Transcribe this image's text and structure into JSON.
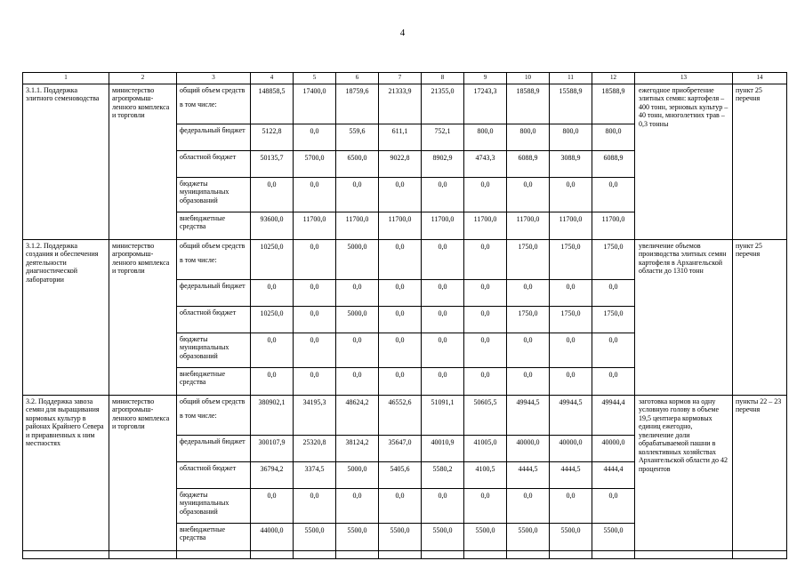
{
  "page": {
    "number": "4"
  },
  "table": {
    "column_numbers": [
      "1",
      "2",
      "3",
      "4",
      "5",
      "6",
      "7",
      "8",
      "9",
      "10",
      "11",
      "12",
      "13",
      "14"
    ],
    "groups": [
      {
        "title": "3.1.1. Поддержка элитного семеноводства",
        "executor": "министерство агропромыш­ленного комплекса и торговли",
        "rows": [
          {
            "label": "общий объем средств",
            "note": "в том числе:",
            "values": [
              "148858,5",
              "17400,0",
              "18759,6",
              "21333,9",
              "21355,0",
              "17243,3",
              "18588,9",
              "15588,9",
              "18588,9"
            ]
          },
          {
            "label": "федеральный бюджет",
            "values": [
              "5122,8",
              "0,0",
              "559,6",
              "611,1",
              "752,1",
              "800,0",
              "800,0",
              "800,0",
              "800,0"
            ]
          },
          {
            "label": "областной бюджет",
            "values": [
              "50135,7",
              "5700,0",
              "6500,0",
              "9022,8",
              "8902,9",
              "4743,3",
              "6088,9",
              "3088,9",
              "6088,9"
            ]
          },
          {
            "label": "бюджеты муниципальных образований",
            "values": [
              "0,0",
              "0,0",
              "0,0",
              "0,0",
              "0,0",
              "0,0",
              "0,0",
              "0,0",
              "0,0"
            ]
          },
          {
            "label": "внебюджетные средства",
            "values": [
              "93600,0",
              "11700,0",
              "11700,0",
              "11700,0",
              "11700,0",
              "11700,0",
              "11700,0",
              "11700,0",
              "11700,0"
            ]
          }
        ],
        "expected_result": "ежегодное приобретение элитных семян: картофеля – 400 тонн, зерновых культур – 40 тонн, многолетних трав – 0,3 тонны",
        "reference": "пункт 25 перечня"
      },
      {
        "title": "3.1.2. Поддержка создания и обеспечения деятельности диагностической лаборатории",
        "executor": "министерство агропромыш­ленного комплекса и торговли",
        "rows": [
          {
            "label": "общий объем средств",
            "note": "в том числе:",
            "values": [
              "10250,0",
              "0,0",
              "5000,0",
              "0,0",
              "0,0",
              "0,0",
              "1750,0",
              "1750,0",
              "1750,0"
            ]
          },
          {
            "label": "федеральный бюджет",
            "values": [
              "0,0",
              "0,0",
              "0,0",
              "0,0",
              "0,0",
              "0,0",
              "0,0",
              "0,0",
              "0,0"
            ]
          },
          {
            "label": "областной бюджет",
            "values": [
              "10250,0",
              "0,0",
              "5000,0",
              "0,0",
              "0,0",
              "0,0",
              "1750,0",
              "1750,0",
              "1750,0"
            ]
          },
          {
            "label": "бюджеты муниципальных образований",
            "values": [
              "0,0",
              "0,0",
              "0,0",
              "0,0",
              "0,0",
              "0,0",
              "0,0",
              "0,0",
              "0,0"
            ]
          },
          {
            "label": "внебюджетные средства",
            "values": [
              "0,0",
              "0,0",
              "0,0",
              "0,0",
              "0,0",
              "0,0",
              "0,0",
              "0,0",
              "0,0"
            ]
          }
        ],
        "expected_result": "увеличение объемов производства элитных семян картофеля в Архангельской области до 1310 тонн",
        "reference": "пункт 25 перечня"
      },
      {
        "title": "3.2. Поддержка завоза семян для выращивания кормовых культур в районах Крайнего Севера и приравненных к ним местностях",
        "executor": "министерство агропромыш­ленного комплекса и торговли",
        "rows": [
          {
            "label": "общий объем средств",
            "note": "в том числе:",
            "values": [
              "380902,1",
              "34195,3",
              "48624,2",
              "46552,6",
              "51091,1",
              "50605,5",
              "49944,5",
              "49944,5",
              "49944,4"
            ]
          },
          {
            "label": "федеральный бюджет",
            "values": [
              "300107,9",
              "25320,8",
              "38124,2",
              "35647,0",
              "40010,9",
              "41005,0",
              "40000,0",
              "40000,0",
              "40000,0"
            ]
          },
          {
            "label": "областной бюджет",
            "values": [
              "36794,2",
              "3374,5",
              "5000,0",
              "5405,6",
              "5580,2",
              "4100,5",
              "4444,5",
              "4444,5",
              "4444,4"
            ]
          },
          {
            "label": "бюджеты муниципальных образований",
            "values": [
              "0,0",
              "0,0",
              "0,0",
              "0,0",
              "0,0",
              "0,0",
              "0,0",
              "0,0",
              "0,0"
            ]
          },
          {
            "label": "внебюджетные средства",
            "values": [
              "44000,0",
              "5500,0",
              "5500,0",
              "5500,0",
              "5500,0",
              "5500,0",
              "5500,0",
              "5500,0",
              "5500,0"
            ]
          }
        ],
        "expected_result": "заготовка кормов на одну условную голову в объеме 19,5 центнера кормовых единиц ежегодно, увеличение доли обрабатываемой пашни в коллективных хозяйствах Архангельской области до 42 процентов",
        "reference": "пункты 22 – 23 перечня"
      }
    ]
  }
}
